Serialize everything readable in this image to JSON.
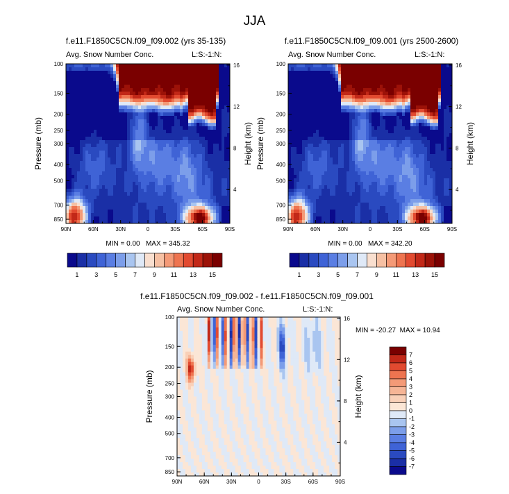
{
  "figure_title": "JJA",
  "colors": {
    "colorbar_top": [
      "#0a0a8c",
      "#1a2fa6",
      "#2a4ac0",
      "#3f63d6",
      "#5a7ee3",
      "#7c9eea",
      "#a9c5f0",
      "#dfe9f7",
      "#f9dfcf",
      "#f6c0a3",
      "#f49a77",
      "#ee7450",
      "#e24a30",
      "#c22818",
      "#9c1208",
      "#7a0000"
    ],
    "colorbar_diff": [
      "#0a0a8c",
      "#1a2fa6",
      "#2a4ac0",
      "#3f63d6",
      "#5a7ee3",
      "#7c9eea",
      "#a9c5f0",
      "#dfe9f7",
      "#fbe6d6",
      "#f9d0b8",
      "#f6b596",
      "#f49a77",
      "#ee7450",
      "#e24a30",
      "#c22818",
      "#7a0000"
    ]
  },
  "chart_data": [
    {
      "type": "heatmap",
      "title": "f.e11.F1850C5CN.f09_f09.002 (yrs 35-135)",
      "left_label": "Avg. Snow Number Conc.",
      "right_label": "L:S:-1:N:",
      "xlabel": "",
      "ylabel": "Pressure (mb)",
      "y2label": "Height (km)",
      "x_ticks": [
        "90N",
        "60N",
        "30N",
        "0",
        "30S",
        "60S",
        "90S"
      ],
      "y_ticks": [
        "100",
        "150",
        "200",
        "250",
        "300",
        "400",
        "500",
        "700",
        "850"
      ],
      "y_tick_values": [
        100,
        150,
        200,
        250,
        300,
        400,
        500,
        700,
        850
      ],
      "y2_ticks": [
        "16",
        "12",
        "8",
        "4"
      ],
      "y2_tick_values": [
        16,
        12,
        8,
        4
      ],
      "y_range_mb": [
        100,
        900
      ],
      "x_range_lat": [
        90,
        -90
      ],
      "min_text": "MIN =  0.00",
      "max_text": "MAX = 345.32",
      "field": "snow"
    },
    {
      "type": "heatmap",
      "title": "f.e11.F1850C5CN.f09_f09.001 (yrs 2500-2600)",
      "left_label": "Avg. Snow Number Conc.",
      "right_label": "L:S:-1:N:",
      "xlabel": "",
      "ylabel": "Pressure (mb)",
      "y2label": "Height (km)",
      "x_ticks": [
        "90N",
        "60N",
        "30N",
        "0",
        "30S",
        "60S",
        "90S"
      ],
      "y_ticks": [
        "100",
        "150",
        "200",
        "250",
        "300",
        "400",
        "500",
        "700",
        "850"
      ],
      "y_tick_values": [
        100,
        150,
        200,
        250,
        300,
        400,
        500,
        700,
        850
      ],
      "y2_ticks": [
        "16",
        "12",
        "8",
        "4"
      ],
      "y2_tick_values": [
        16,
        12,
        8,
        4
      ],
      "y_range_mb": [
        100,
        900
      ],
      "x_range_lat": [
        90,
        -90
      ],
      "min_text": "MIN =  0.00",
      "max_text": "MAX = 342.20",
      "field": "snow"
    },
    {
      "type": "heatmap",
      "title": "f.e11.F1850C5CN.f09_f09.002 - f.e11.F1850C5CN.f09_f09.001",
      "left_label": "Avg. Snow Number Conc.",
      "right_label": "L:S:-1:N:",
      "xlabel": "",
      "ylabel": "Pressure (mb)",
      "y2label": "Height (km)",
      "x_ticks": [
        "90N",
        "60N",
        "30N",
        "0",
        "30S",
        "60S",
        "90S"
      ],
      "y_ticks": [
        "100",
        "150",
        "200",
        "250",
        "300",
        "400",
        "500",
        "700",
        "850"
      ],
      "y_tick_values": [
        100,
        150,
        200,
        250,
        300,
        400,
        500,
        700,
        850
      ],
      "y2_ticks": [
        "16",
        "12",
        "8",
        "4"
      ],
      "y2_tick_values": [
        16,
        12,
        8,
        4
      ],
      "y_range_mb": [
        100,
        900
      ],
      "x_range_lat": [
        90,
        -90
      ],
      "min_text": "MIN = -20.27",
      "max_text": "MAX =  10.94",
      "field": "diff"
    }
  ],
  "colorbar_top": {
    "labels": [
      "1",
      "3",
      "5",
      "7",
      "9",
      "11",
      "13",
      "15"
    ]
  },
  "colorbar_diff": {
    "labels": [
      "7",
      "6",
      "5",
      "4",
      "3",
      "2",
      "1",
      "0",
      "-1",
      "-2",
      "-3",
      "-4",
      "-5",
      "-6",
      "-7"
    ]
  }
}
